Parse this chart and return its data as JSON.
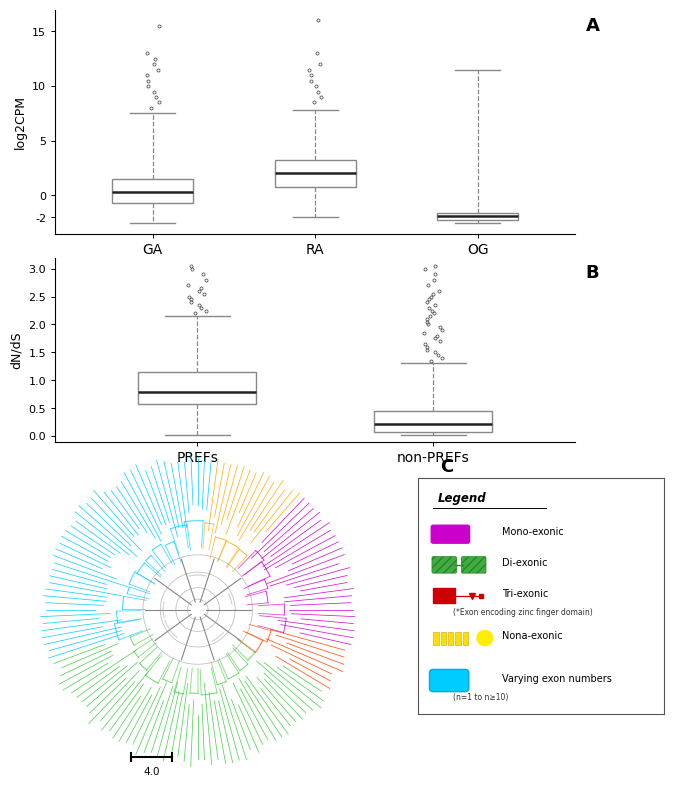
{
  "panel_A": {
    "title_label": "A",
    "ylabel": "log2CPM",
    "categories": [
      "GA",
      "RA",
      "OG"
    ],
    "boxes": [
      {
        "median": 0.3,
        "q1": -0.7,
        "q3": 1.5,
        "whislo": -2.5,
        "whishi": 7.5,
        "fliers_high": [
          8.0,
          8.5,
          9.0,
          9.5,
          10.0,
          10.5,
          11.0,
          11.5,
          12.0,
          12.5,
          13.0,
          15.5
        ],
        "fliers_low": []
      },
      {
        "median": 2.0,
        "q1": 0.8,
        "q3": 3.2,
        "whislo": -2.0,
        "whishi": 7.8,
        "fliers_high": [
          8.5,
          9.0,
          9.5,
          10.0,
          10.5,
          11.0,
          11.5,
          12.0,
          13.0,
          16.0
        ],
        "fliers_low": []
      },
      {
        "median": -1.9,
        "q1": -2.3,
        "q3": -1.6,
        "whislo": -2.5,
        "whishi": 11.5,
        "fliers_high": [],
        "fliers_low": []
      }
    ],
    "ylim": [
      -3.5,
      17
    ],
    "yticks": [
      -2,
      0,
      5,
      10,
      15
    ]
  },
  "panel_B": {
    "title_label": "B",
    "ylabel": "dN/dS",
    "categories": [
      "PREFs",
      "non-PREFs"
    ],
    "boxes": [
      {
        "median": 0.78,
        "q1": 0.58,
        "q3": 1.15,
        "whislo": 0.02,
        "whishi": 2.15,
        "fliers_high": [
          2.2,
          2.25,
          2.3,
          2.35,
          2.4,
          2.45,
          2.5,
          2.55,
          2.6,
          2.65,
          2.7,
          2.8,
          2.9,
          3.0,
          3.05
        ],
        "fliers_low": []
      },
      {
        "median": 0.22,
        "q1": 0.07,
        "q3": 0.45,
        "whislo": 0.02,
        "whishi": 1.3,
        "fliers_high": [
          1.35,
          1.4,
          1.45,
          1.5,
          1.55,
          1.6,
          1.65,
          1.7,
          1.75,
          1.8,
          1.85,
          1.9,
          1.95,
          2.0,
          2.05,
          2.1,
          2.15,
          2.2,
          2.25,
          2.3,
          2.35,
          2.4,
          2.45,
          2.5,
          2.55,
          2.6,
          2.7,
          2.8,
          2.9,
          3.0,
          3.05
        ],
        "fliers_low": []
      }
    ],
    "ylim": [
      -0.1,
      3.2
    ],
    "yticks": [
      0.0,
      0.5,
      1.0,
      1.5,
      2.0,
      2.5,
      3.0
    ]
  },
  "colors": {
    "box_face": "#ffffff",
    "box_edge": "#888888",
    "median_line": "#222222",
    "whisker": "#888888",
    "flier": "#555555",
    "background": "#ffffff"
  }
}
